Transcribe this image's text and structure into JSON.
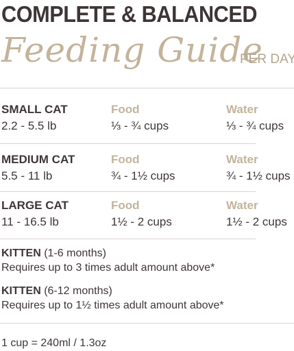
{
  "header": {
    "headline": "COMPLETE & BALANCED",
    "script_title": "Feeding Guide",
    "per_day": "PER DAY"
  },
  "columns": {
    "food": "Food",
    "water": "Water"
  },
  "rows": [
    {
      "label": "SMALL CAT",
      "weight": "2.2 - 5.5 lb",
      "food": "⅓ - ¾ cups",
      "water": "⅓ - ¾ cups"
    },
    {
      "label": "MEDIUM CAT",
      "weight": "5.5 - 11 lb",
      "food": "¾ - 1½ cups",
      "water": "¾ - 1½ cups"
    },
    {
      "label": "LARGE CAT",
      "weight": "11 - 16.5 lb",
      "food": "1½ - 2 cups",
      "water": "1½ - 2 cups"
    }
  ],
  "kittens": [
    {
      "label": "KITTEN",
      "age": " (1-6 months)",
      "note": "Requires up to 3 times adult amount above*"
    },
    {
      "label": "KITTEN",
      "age": " (6-12 months)",
      "note": "Requires up to 1½ times adult amount above*"
    }
  ],
  "footer": "1 cup = 240ml / 1.3oz",
  "colors": {
    "dark": "#3e3536",
    "tan": "#c4b39a",
    "rule": "#d9d3cc"
  }
}
